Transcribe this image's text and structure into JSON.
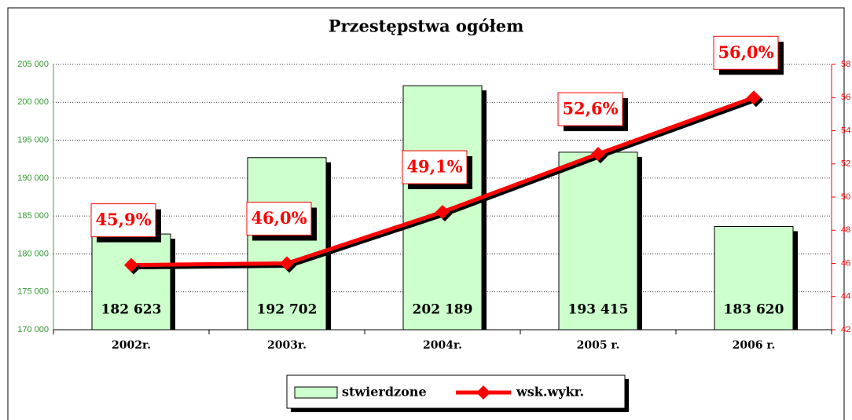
{
  "chart_data": {
    "type": "bar",
    "title": "Przestępstwa ogółem",
    "categories": [
      "2002r.",
      "2003r.",
      "2004r.",
      "2005 r.",
      "2006 r."
    ],
    "series": [
      {
        "name": "stwierdzone",
        "type": "bar",
        "color": "#ccffcc",
        "values": [
          182623,
          192702,
          202189,
          193415,
          183620
        ],
        "value_labels": [
          "182 623",
          "192 702",
          "202 189",
          "193 415",
          "183 620"
        ]
      },
      {
        "name": "wsk.wykr.",
        "type": "line",
        "axis": "y2",
        "color": "#ff0000",
        "values": [
          45.9,
          46.0,
          49.1,
          52.6,
          56.0
        ],
        "value_labels": [
          "45,9%",
          "46,0%",
          "49,1%",
          "52,6%",
          "56,0%"
        ]
      }
    ],
    "ylim": [
      170000,
      205000
    ],
    "yticks": [
      {
        "value": 170000,
        "label": "170 000"
      },
      {
        "value": 175000,
        "label": "175 000"
      },
      {
        "value": 180000,
        "label": "180 000"
      },
      {
        "value": 185000,
        "label": "185 000"
      },
      {
        "value": 190000,
        "label": "190 000"
      },
      {
        "value": 195000,
        "label": "195 000"
      },
      {
        "value": 200000,
        "label": "200 000"
      },
      {
        "value": 205000,
        "label": "205 000"
      }
    ],
    "y2lim": [
      42,
      58
    ],
    "y2ticks": [
      42,
      44,
      46,
      48,
      50,
      52,
      54,
      56,
      58
    ],
    "grid": true,
    "legend": "bottom"
  }
}
